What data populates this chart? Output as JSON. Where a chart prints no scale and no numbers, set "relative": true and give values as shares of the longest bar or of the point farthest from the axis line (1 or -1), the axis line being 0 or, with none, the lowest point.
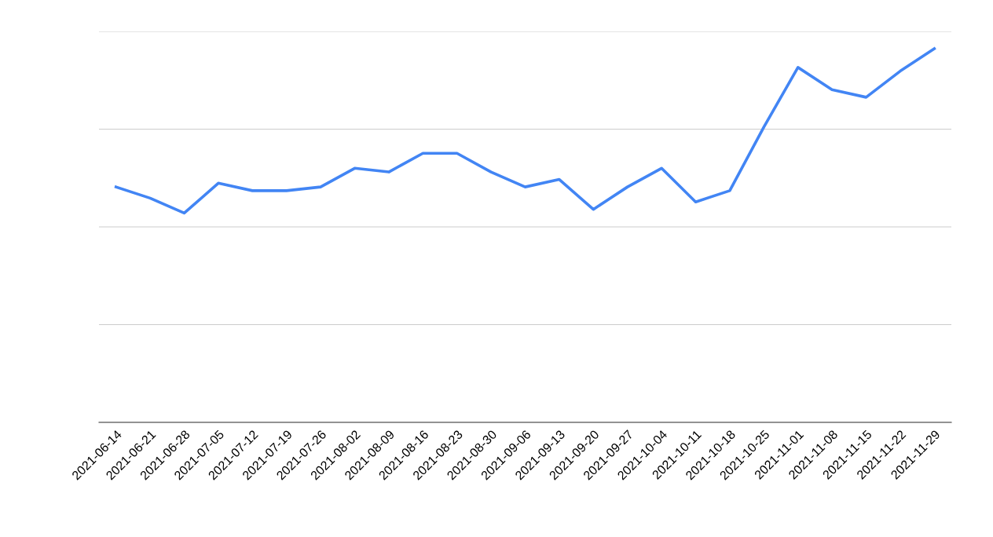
{
  "chart_data": {
    "type": "line",
    "relative": true,
    "grid": "y",
    "legend": false,
    "marker": "none",
    "line_style": "solid",
    "categories": [
      "2021-06-14",
      "2021-06-21",
      "2021-06-28",
      "2021-07-05",
      "2021-07-12",
      "2021-07-19",
      "2021-07-26",
      "2021-08-02",
      "2021-08-09",
      "2021-08-16",
      "2021-08-23",
      "2021-08-30",
      "2021-09-06",
      "2021-09-13",
      "2021-09-20",
      "2021-09-27",
      "2021-10-04",
      "2021-10-11",
      "2021-10-18",
      "2021-10-25",
      "2021-11-01",
      "2021-11-08",
      "2021-11-15",
      "2021-11-22",
      "2021-11-29"
    ],
    "series": [
      {
        "color": "#4285f4",
        "values": [
          0.63,
          0.6,
          0.56,
          0.64,
          0.62,
          0.62,
          0.63,
          0.68,
          0.67,
          0.72,
          0.72,
          0.67,
          0.63,
          0.65,
          0.57,
          0.63,
          0.68,
          0.59,
          0.62,
          0.79,
          0.95,
          0.89,
          0.87,
          0.94,
          1.0
        ]
      }
    ]
  }
}
